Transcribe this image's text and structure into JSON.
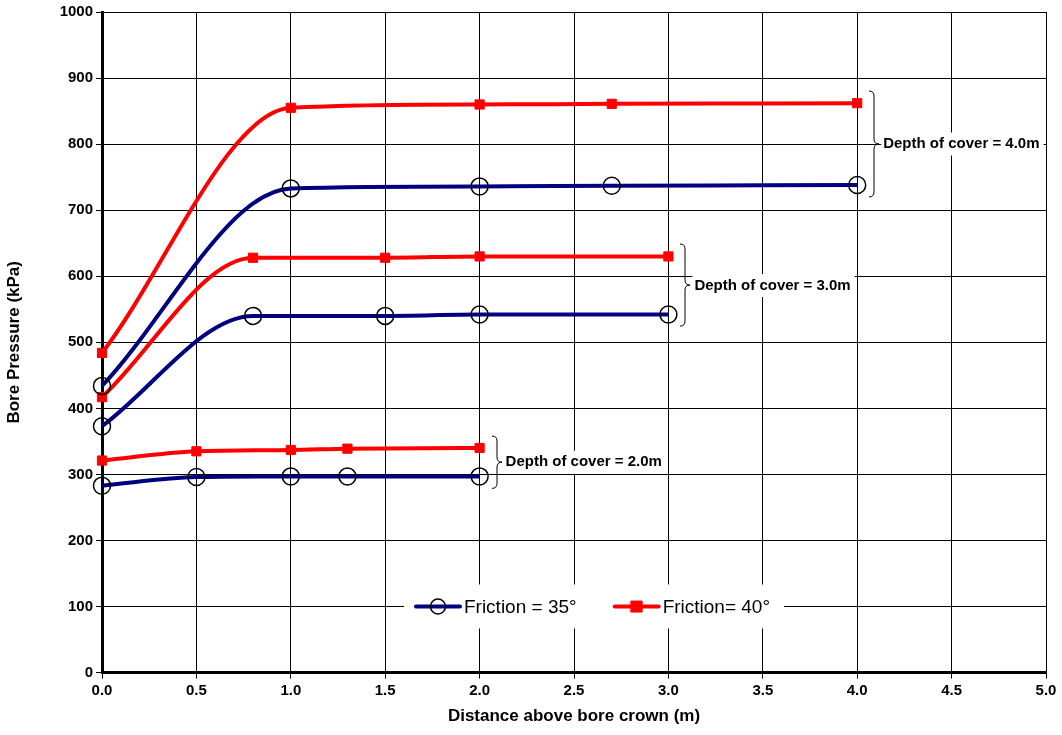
{
  "chart_data": {
    "type": "line",
    "xlabel": "Distance above bore crown (m)",
    "ylabel": "Bore Pressure (kPa)",
    "xlim": [
      0,
      5
    ],
    "xticks": [
      {
        "value": 0,
        "label": "0.0"
      },
      {
        "value": 0.5,
        "label": "0.5"
      },
      {
        "value": 1,
        "label": "1.0"
      },
      {
        "value": 1.5,
        "label": "1.5"
      },
      {
        "value": 2,
        "label": "2.0"
      },
      {
        "value": 2.5,
        "label": "2.5"
      },
      {
        "value": 3,
        "label": "3.0"
      },
      {
        "value": 3.5,
        "label": "3.5"
      },
      {
        "value": 4,
        "label": "4.0"
      },
      {
        "value": 4.5,
        "label": "4.5"
      },
      {
        "value": 5,
        "label": "5.0"
      }
    ],
    "ylim": [
      0,
      1000
    ],
    "yticks": [
      0,
      100,
      200,
      300,
      400,
      500,
      600,
      700,
      800,
      900,
      1000
    ],
    "grid": true,
    "legend": "bottom",
    "line_style": "solid",
    "series": [
      {
        "name": "Friction = 35°",
        "color": "#000080",
        "marker": "circle",
        "x": [
          0,
          0.5,
          1,
          1.3,
          2
        ],
        "values": [
          283,
          296,
          297,
          297,
          297
        ]
      },
      {
        "name": "Friction= 40°",
        "color": "#ff0000",
        "marker": "square",
        "x": [
          0,
          0.5,
          1,
          1.3,
          2
        ],
        "values": [
          321,
          335,
          337,
          339,
          340
        ]
      },
      {
        "color": "#000080",
        "marker": "circle",
        "x": [
          0,
          0.8,
          1.5,
          2,
          3
        ],
        "values": [
          373,
          540,
          540,
          542,
          542
        ]
      },
      {
        "color": "#ff0000",
        "marker": "square",
        "x": [
          0,
          0.8,
          1.5,
          2,
          3
        ],
        "values": [
          417,
          628,
          628,
          630,
          630
        ]
      },
      {
        "color": "#000080",
        "marker": "circle",
        "x": [
          0,
          1,
          2,
          2.7,
          4
        ],
        "values": [
          434,
          733,
          736,
          737,
          738
        ]
      },
      {
        "color": "#ff0000",
        "marker": "square",
        "x": [
          0,
          1,
          2,
          2.7,
          4
        ],
        "values": [
          484,
          855,
          860,
          861,
          862
        ]
      }
    ],
    "annotations": [
      "Depth of cover = 2.0m",
      "Depth of cover = 3.0m",
      "Depth of cover = 4.0m"
    ]
  }
}
